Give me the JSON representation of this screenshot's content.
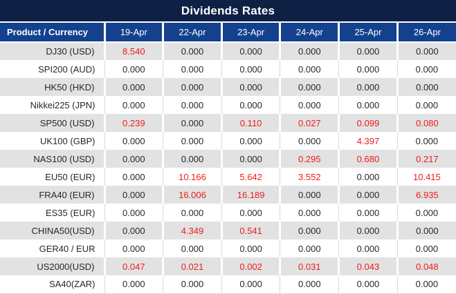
{
  "title": "Dividends Rates",
  "colors": {
    "title_bar": "#0e2145",
    "header_row": "#14418e",
    "row_alt": "#e2e2e2",
    "value_text": "#26262e",
    "nonzero_value": "#ee1b1b"
  },
  "table": {
    "product_header": "Product / Currency",
    "date_columns": [
      "19-Apr",
      "22-Apr",
      "23-Apr",
      "24-Apr",
      "25-Apr",
      "26-Apr"
    ],
    "rows": [
      {
        "product": "DJ30 (USD)",
        "values": [
          "8.540",
          "0.000",
          "0.000",
          "0.000",
          "0.000",
          "0.000"
        ]
      },
      {
        "product": "SPI200 (AUD)",
        "values": [
          "0.000",
          "0.000",
          "0.000",
          "0.000",
          "0.000",
          "0.000"
        ]
      },
      {
        "product": "HK50 (HKD)",
        "values": [
          "0.000",
          "0.000",
          "0.000",
          "0.000",
          "0.000",
          "0.000"
        ]
      },
      {
        "product": "Nikkei225 (JPN)",
        "values": [
          "0.000",
          "0.000",
          "0.000",
          "0.000",
          "0.000",
          "0.000"
        ]
      },
      {
        "product": "SP500 (USD)",
        "values": [
          "0.239",
          "0.000",
          "0.110",
          "0.027",
          "0.099",
          "0.080"
        ]
      },
      {
        "product": "UK100 (GBP)",
        "values": [
          "0.000",
          "0.000",
          "0.000",
          "0.000",
          "4.397",
          "0.000"
        ]
      },
      {
        "product": "NAS100 (USD)",
        "values": [
          "0.000",
          "0.000",
          "0.000",
          "0.295",
          "0.680",
          "0.217"
        ]
      },
      {
        "product": "EU50 (EUR)",
        "values": [
          "0.000",
          "10.166",
          "5.642",
          "3.552",
          "0.000",
          "10.415"
        ]
      },
      {
        "product": "FRA40 (EUR)",
        "values": [
          "0.000",
          "16.006",
          "16.189",
          "0.000",
          "0.000",
          "6.935"
        ]
      },
      {
        "product": "ES35 (EUR)",
        "values": [
          "0.000",
          "0.000",
          "0.000",
          "0.000",
          "0.000",
          "0.000"
        ]
      },
      {
        "product": "CHINA50(USD)",
        "values": [
          "0.000",
          "4.349",
          "0.541",
          "0.000",
          "0.000",
          "0.000"
        ]
      },
      {
        "product": "GER40 / EUR",
        "values": [
          "0.000",
          "0.000",
          "0.000",
          "0.000",
          "0.000",
          "0.000"
        ]
      },
      {
        "product": "US2000(USD)",
        "values": [
          "0.047",
          "0.021",
          "0.002",
          "0.031",
          "0.043",
          "0.048"
        ]
      },
      {
        "product": "SA40(ZAR)",
        "values": [
          "0.000",
          "0.000",
          "0.000",
          "0.000",
          "0.000",
          "0.000"
        ]
      }
    ]
  }
}
